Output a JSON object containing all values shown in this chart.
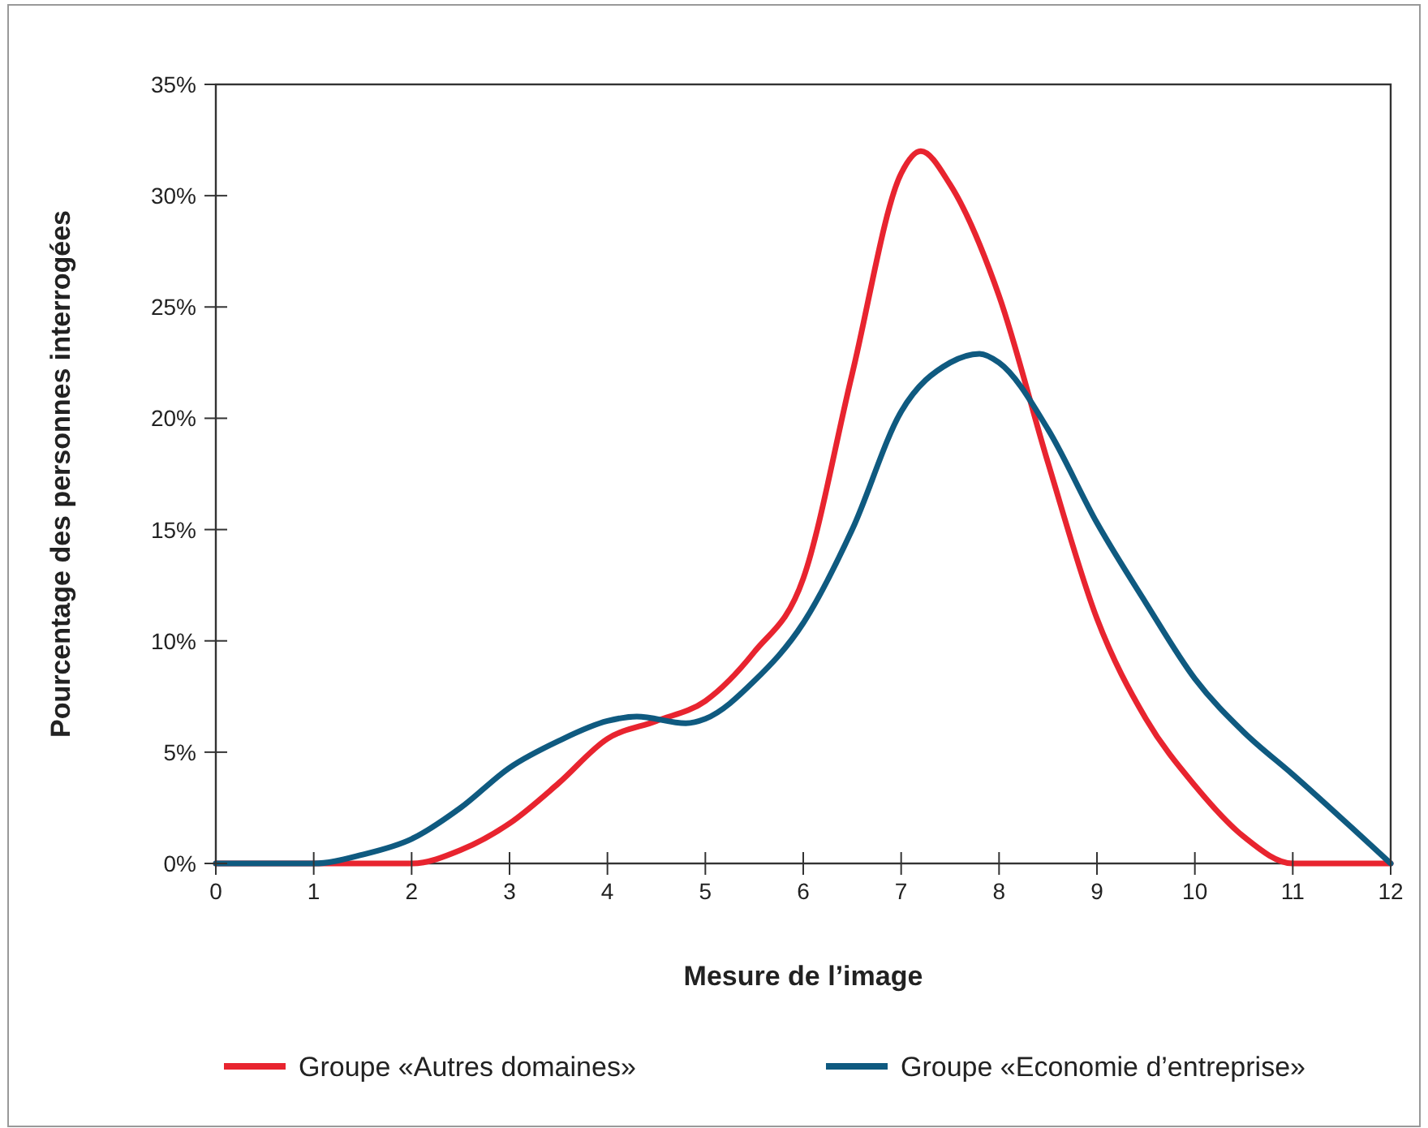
{
  "chart_data": {
    "type": "line",
    "xlabel": "Mesure de l’image",
    "ylabel": "Pourcentage des personnes interrogées",
    "xlim": [
      0,
      12
    ],
    "xticks": [
      0,
      1,
      2,
      3,
      4,
      5,
      6,
      7,
      8,
      9,
      10,
      11,
      12
    ],
    "ylim": [
      0,
      35
    ],
    "yticks": [
      {
        "value": 0,
        "label": "0%"
      },
      {
        "value": 5,
        "label": "5%"
      },
      {
        "value": 10,
        "label": "10%"
      },
      {
        "value": 15,
        "label": "15%"
      },
      {
        "value": 20,
        "label": "20%"
      },
      {
        "value": 25,
        "label": "25%"
      },
      {
        "value": 30,
        "label": "30%"
      },
      {
        "value": 35,
        "label": "35%"
      }
    ],
    "grid": false,
    "legend": "bottom",
    "marker": "none",
    "line_style": "solid",
    "series": [
      {
        "name": "Groupe «Autres domaines»",
        "color": "#e8242f",
        "x": [
          0,
          1,
          2,
          2.5,
          3,
          3.5,
          4,
          4.5,
          5,
          5.5,
          6,
          6.5,
          7,
          7.2,
          7.5,
          8,
          8.5,
          9,
          9.5,
          10,
          10.5,
          11,
          12
        ],
        "values": [
          0,
          0,
          0,
          0.6,
          1.8,
          3.6,
          5.6,
          6.4,
          7.3,
          9.5,
          12.8,
          22,
          31,
          32,
          30.5,
          25.5,
          18,
          11,
          6.5,
          3.5,
          1.2,
          0,
          0
        ]
      },
      {
        "name": "Groupe «Economie d’entreprise»",
        "color": "#0f5a80",
        "x": [
          0,
          1,
          1.5,
          2,
          2.5,
          3,
          3.5,
          4,
          4.3,
          4.8,
          5,
          5.5,
          6,
          6.5,
          7,
          7.5,
          7.8,
          8,
          8.5,
          9,
          9.5,
          10,
          10.5,
          11,
          12
        ],
        "values": [
          0,
          0,
          0.4,
          1.1,
          2.5,
          4.3,
          5.5,
          6.4,
          6.6,
          6.3,
          6.5,
          8.2,
          10.8,
          15,
          20.3,
          22.5,
          22.9,
          22.5,
          19.5,
          15.3,
          11.7,
          8.3,
          5.9,
          4,
          0
        ]
      }
    ]
  }
}
